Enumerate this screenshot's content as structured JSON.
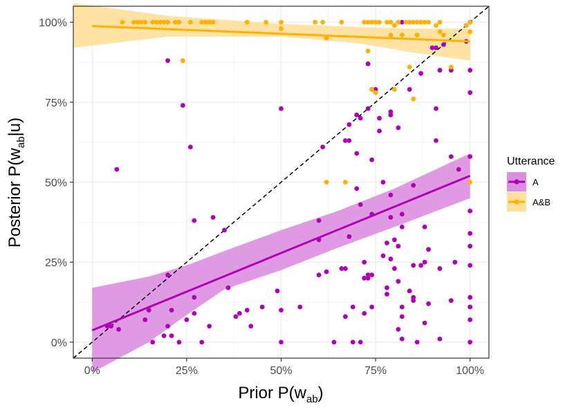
{
  "chart_data": {
    "type": "scatter",
    "xlabel": {
      "main": "Prior P(w",
      "sub": "ab",
      "end": ")"
    },
    "ylabel": {
      "main": "Posterior P(w",
      "sub": "ab",
      "end": "|u)"
    },
    "xlim": [
      -0.05,
      1.05
    ],
    "ylim": [
      -0.05,
      1.05
    ],
    "x_ticks": [
      {
        "v": 0,
        "label": "0%"
      },
      {
        "v": 0.25,
        "label": "25%"
      },
      {
        "v": 0.5,
        "label": "50%"
      },
      {
        "v": 0.75,
        "label": "75%"
      },
      {
        "v": 1,
        "label": "100%"
      }
    ],
    "y_ticks": [
      {
        "v": 0,
        "label": "0%"
      },
      {
        "v": 0.25,
        "label": "25%"
      },
      {
        "v": 0.5,
        "label": "50%"
      },
      {
        "v": 0.75,
        "label": "75%"
      },
      {
        "v": 1,
        "label": "100%"
      }
    ],
    "grid": true,
    "reference_line": {
      "type": "dashed",
      "x": [
        -0.05,
        1.05
      ],
      "y": [
        -0.05,
        1.05
      ],
      "color": "#000000"
    },
    "legend": {
      "title": "Utterance",
      "position": "right"
    },
    "series": [
      {
        "name": "A",
        "color": "#b000b8",
        "band_color": "#dc8fe0",
        "fit": {
          "x": [
            0,
            1
          ],
          "y": [
            0.037,
            0.52
          ]
        },
        "band_upper": [
          [
            0,
            0.17
          ],
          [
            0.15,
            0.205
          ],
          [
            0.25,
            0.24
          ],
          [
            0.35,
            0.285
          ],
          [
            0.5,
            0.35
          ],
          [
            0.65,
            0.41
          ],
          [
            0.8,
            0.48
          ],
          [
            1,
            0.59
          ]
        ],
        "band_lower": [
          [
            0,
            -0.095
          ],
          [
            0.15,
            0.0
          ],
          [
            0.25,
            0.085
          ],
          [
            0.35,
            0.165
          ],
          [
            0.5,
            0.225
          ],
          [
            0.65,
            0.295
          ],
          [
            0.8,
            0.36
          ],
          [
            1,
            0.45
          ]
        ],
        "points": [
          [
            0.04,
            0.05
          ],
          [
            0.05,
            0.05
          ],
          [
            0.07,
            0.04
          ],
          [
            0.065,
            0.54
          ],
          [
            0.14,
            0.07
          ],
          [
            0.16,
            0.0
          ],
          [
            0.15,
            0.1
          ],
          [
            0.19,
            0.02
          ],
          [
            0.2,
            0.21
          ],
          [
            0.2,
            0.88
          ],
          [
            0.2,
            0.05
          ],
          [
            0.21,
            0.02
          ],
          [
            0.21,
            0.1
          ],
          [
            0.23,
            0.0
          ],
          [
            0.25,
            0.07
          ],
          [
            0.24,
            0.74
          ],
          [
            0.26,
            0.61
          ],
          [
            0.27,
            0.09
          ],
          [
            0.27,
            0.38
          ],
          [
            0.27,
            0.14
          ],
          [
            0.29,
            0.0
          ],
          [
            0.31,
            0.05
          ],
          [
            0.32,
            0.39
          ],
          [
            0.35,
            0.35
          ],
          [
            0.36,
            0.17
          ],
          [
            0.38,
            0.08
          ],
          [
            0.39,
            0.09
          ],
          [
            0.41,
            0.1
          ],
          [
            0.42,
            0.05
          ],
          [
            0.45,
            0.11
          ],
          [
            0.49,
            0.16
          ],
          [
            0.5,
            0.73
          ],
          [
            0.5,
            0.1
          ],
          [
            0.5,
            0.0
          ],
          [
            0.55,
            0.11
          ],
          [
            0.6,
            0.38
          ],
          [
            0.6,
            0.32
          ],
          [
            0.6,
            0.21
          ],
          [
            0.62,
            0.22
          ],
          [
            0.61,
            0.61
          ],
          [
            0.64,
            0.0
          ],
          [
            0.66,
            0.23
          ],
          [
            0.67,
            0.23
          ],
          [
            0.67,
            0.08
          ],
          [
            0.67,
            0.63
          ],
          [
            0.68,
            0.63
          ],
          [
            0.68,
            0.33
          ],
          [
            0.68,
            0.68
          ],
          [
            0.69,
            0.11
          ],
          [
            0.69,
            0.0
          ],
          [
            0.7,
            0.59
          ],
          [
            0.7,
            0.48
          ],
          [
            0.7,
            0.71
          ],
          [
            0.71,
            0.7
          ],
          [
            0.71,
            0.43
          ],
          [
            0.71,
            0.0
          ],
          [
            0.72,
            0.09
          ],
          [
            0.72,
            0.25
          ],
          [
            0.72,
            0.2
          ],
          [
            0.73,
            0.21
          ],
          [
            0.73,
            0.2
          ],
          [
            0.73,
            0.73
          ],
          [
            0.73,
            0.87
          ],
          [
            0.74,
            0.57
          ],
          [
            0.74,
            0.79
          ],
          [
            0.74,
            0.4
          ],
          [
            0.74,
            0.11
          ],
          [
            0.74,
            0.21
          ],
          [
            0.75,
            0.79
          ],
          [
            0.76,
            0.7
          ],
          [
            0.76,
            0.66
          ],
          [
            0.77,
            0.5
          ],
          [
            0.77,
            0.27
          ],
          [
            0.78,
            0.31
          ],
          [
            0.78,
            0.15
          ],
          [
            0.78,
            0.17
          ],
          [
            0.79,
            0.46
          ],
          [
            0.79,
            0.72
          ],
          [
            0.79,
            0.71
          ],
          [
            0.79,
            0.39
          ],
          [
            0.79,
            0.26
          ],
          [
            0.8,
            0.32
          ],
          [
            0.8,
            0.23
          ],
          [
            0.81,
            0.3
          ],
          [
            0.81,
            0.67
          ],
          [
            0.81,
            0.04
          ],
          [
            0.81,
            0.19
          ],
          [
            0.82,
            0.11
          ],
          [
            0.82,
            0.36
          ],
          [
            0.82,
            0.4
          ],
          [
            0.82,
            0.08
          ],
          [
            0.82,
            0.01
          ],
          [
            0.82,
            1.0
          ],
          [
            0.84,
            0.79
          ],
          [
            0.84,
            0.16
          ],
          [
            0.85,
            0.24
          ],
          [
            0.85,
            0.14
          ],
          [
            0.85,
            0.13
          ],
          [
            0.85,
            0.49
          ],
          [
            0.86,
            0.0
          ],
          [
            0.87,
            0.84
          ],
          [
            0.87,
            0.24
          ],
          [
            0.88,
            0.25
          ],
          [
            0.88,
            0.06
          ],
          [
            0.88,
            0.36
          ],
          [
            0.89,
            0.29
          ],
          [
            0.89,
            0.12
          ],
          [
            0.9,
            0.92
          ],
          [
            0.91,
            0.63
          ],
          [
            0.91,
            0.73
          ],
          [
            0.91,
            0.92
          ],
          [
            0.92,
            0.85
          ],
          [
            0.92,
            0.23
          ],
          [
            0.92,
            0.01
          ],
          [
            0.93,
            0.93
          ],
          [
            0.95,
            0.85
          ],
          [
            0.95,
            0.58
          ],
          [
            0.95,
            0.13
          ],
          [
            0.96,
            0.25
          ],
          [
            0.97,
            0.54
          ],
          [
            0.99,
            0.99
          ],
          [
            0.99,
            0.94
          ],
          [
            1.0,
            0.58
          ],
          [
            1.0,
            0.85
          ],
          [
            1.0,
            0.78
          ],
          [
            1.0,
            0.41
          ],
          [
            1.0,
            0.34
          ],
          [
            1.0,
            0.3
          ],
          [
            1.0,
            0.24
          ],
          [
            1.0,
            0.14
          ],
          [
            1.0,
            0.11
          ],
          [
            1.0,
            0.07
          ],
          [
            1.0,
            0.0
          ],
          [
            1.0,
            1.0
          ]
        ]
      },
      {
        "name": "A&B",
        "color": "#ffb000",
        "band_color": "#ffe09a",
        "fit": {
          "x": [
            0,
            1
          ],
          "y": [
            0.988,
            0.94
          ]
        },
        "band_upper": [
          [
            -0.05,
            1.06
          ],
          [
            0.2,
            1.02
          ],
          [
            0.5,
            0.995
          ],
          [
            0.7,
            0.985
          ],
          [
            0.85,
            0.98
          ],
          [
            1,
            0.98
          ]
        ],
        "band_lower": [
          [
            -0.05,
            0.92
          ],
          [
            0.2,
            0.955
          ],
          [
            0.5,
            0.955
          ],
          [
            0.7,
            0.935
          ],
          [
            0.85,
            0.905
          ],
          [
            1,
            0.88
          ]
        ],
        "points": [
          [
            0.08,
            1.0
          ],
          [
            0.11,
            1.0
          ],
          [
            0.12,
            1.0
          ],
          [
            0.13,
            1.0
          ],
          [
            0.14,
            1.0
          ],
          [
            0.16,
            1.0
          ],
          [
            0.17,
            1.0
          ],
          [
            0.18,
            1.0
          ],
          [
            0.19,
            1.0
          ],
          [
            0.2,
            1.0
          ],
          [
            0.22,
            1.0
          ],
          [
            0.23,
            1.0
          ],
          [
            0.24,
            0.88
          ],
          [
            0.26,
            1.0
          ],
          [
            0.29,
            1.0
          ],
          [
            0.3,
            1.0
          ],
          [
            0.31,
            1.0
          ],
          [
            0.32,
            1.0
          ],
          [
            0.41,
            1.0
          ],
          [
            0.46,
            1.0
          ],
          [
            0.5,
            1.0
          ],
          [
            0.5,
            0.98
          ],
          [
            0.59,
            1.0
          ],
          [
            0.61,
            1.0
          ],
          [
            0.62,
            0.95
          ],
          [
            0.62,
            0.5
          ],
          [
            0.66,
            1.0
          ],
          [
            0.67,
            0.5
          ],
          [
            0.72,
            1.0
          ],
          [
            0.73,
            0.91
          ],
          [
            0.73,
            1.0
          ],
          [
            0.74,
            1.0
          ],
          [
            0.74,
            0.79
          ],
          [
            0.75,
            0.78
          ],
          [
            0.75,
            1.0
          ],
          [
            0.76,
            1.0
          ],
          [
            0.78,
            1.0
          ],
          [
            0.79,
            1.0
          ],
          [
            0.79,
            0.96
          ],
          [
            0.8,
            0.99
          ],
          [
            0.8,
            0.79
          ],
          [
            0.8,
            0.99
          ],
          [
            0.81,
            1.0
          ],
          [
            0.82,
            0.96
          ],
          [
            0.83,
            1.0
          ],
          [
            0.84,
            1.0
          ],
          [
            0.84,
            0.86
          ],
          [
            0.85,
            1.0
          ],
          [
            0.85,
            0.76
          ],
          [
            0.86,
            1.0
          ],
          [
            0.86,
            0.96
          ],
          [
            0.87,
            1.0
          ],
          [
            0.88,
            1.0
          ],
          [
            0.89,
            1.0
          ],
          [
            0.91,
            0.99
          ],
          [
            0.92,
            1.0
          ],
          [
            0.92,
            0.97
          ],
          [
            0.93,
            0.96
          ],
          [
            0.95,
            0.86
          ],
          [
            0.99,
            0.99
          ],
          [
            1.0,
            0.5
          ],
          [
            1.0,
            0.97
          ],
          [
            1.0,
            1.0
          ]
        ]
      }
    ]
  }
}
